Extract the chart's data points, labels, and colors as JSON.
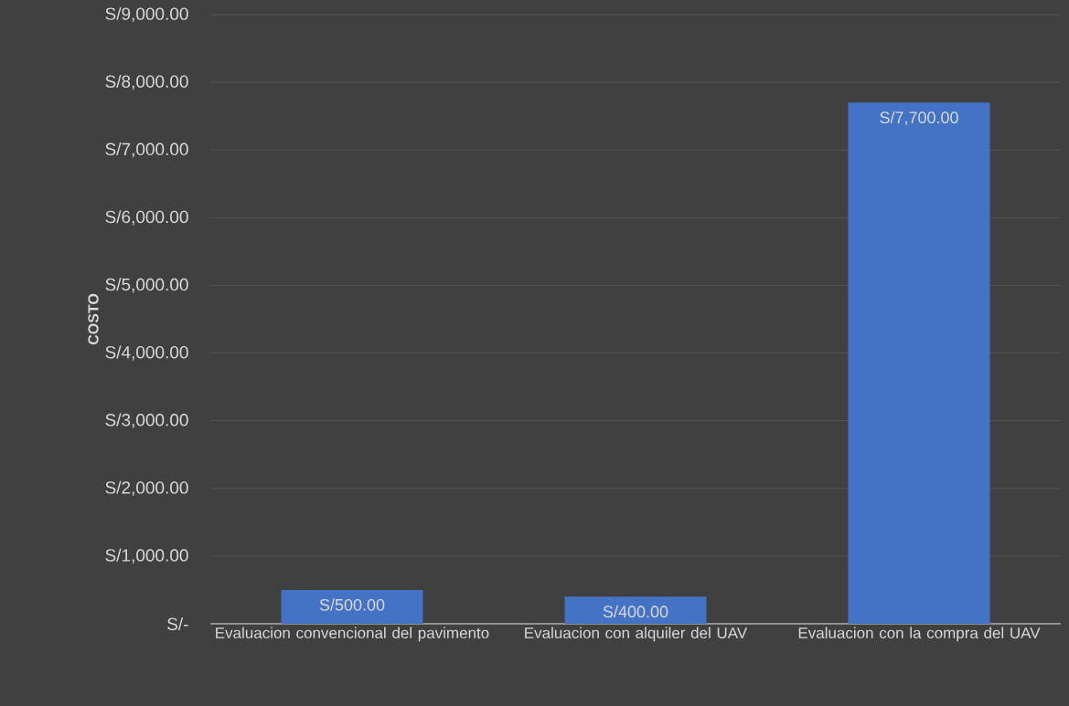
{
  "chart_data": {
    "type": "bar",
    "ylabel": "COSTO",
    "categories": [
      "Evaluacion convencional del pavimento",
      "Evaluacion con alquiler del UAV",
      "Evaluacion con la compra del UAV"
    ],
    "values": [
      500,
      400,
      7700
    ],
    "color": "#4472c4",
    "value_labels": [
      "S/500.00",
      "S/400.00",
      "S/7,700.00"
    ],
    "ylim": [
      0,
      9000
    ],
    "yticks": [
      {
        "value": 0,
        "label": "S/-"
      },
      {
        "value": 1000,
        "label": "S/1,000.00"
      },
      {
        "value": 2000,
        "label": "S/2,000.00"
      },
      {
        "value": 3000,
        "label": "S/3,000.00"
      },
      {
        "value": 4000,
        "label": "S/4,000.00"
      },
      {
        "value": 5000,
        "label": "S/5,000.00"
      },
      {
        "value": 6000,
        "label": "S/6,000.00"
      },
      {
        "value": 7000,
        "label": "S/7,000.00"
      },
      {
        "value": 8000,
        "label": "S/8,000.00"
      },
      {
        "value": 9000,
        "label": "S/9,000.00"
      }
    ],
    "grid": "y"
  }
}
